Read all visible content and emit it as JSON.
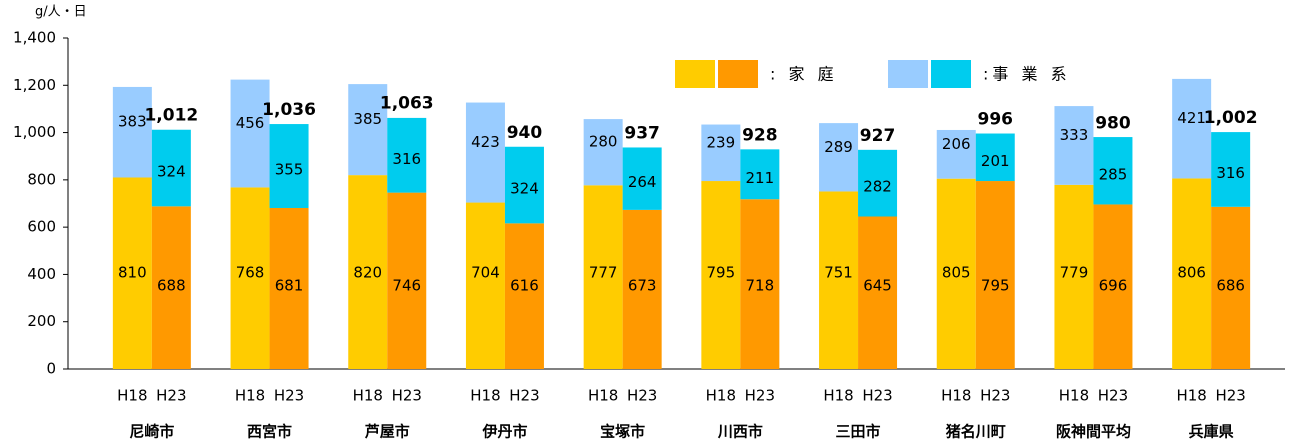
{
  "chart_data": {
    "type": "stacked_grouped_bar",
    "y_axis_label": "g/人・日",
    "groups": [
      "尼崎市",
      "西宮市",
      "芦屋市",
      "伊丹市",
      "宝塚市",
      "川西市",
      "三田市",
      "猪名川町",
      "阪神間平均",
      "兵庫県"
    ],
    "subcategories": [
      "H18",
      "H23"
    ],
    "series": [
      {
        "name": ": 家 庭",
        "colors": [
          "#FFCC00",
          "#FF9900"
        ],
        "values": [
          [
            810,
            688
          ],
          [
            768,
            681
          ],
          [
            820,
            746
          ],
          [
            704,
            616
          ],
          [
            777,
            673
          ],
          [
            795,
            718
          ],
          [
            751,
            645
          ],
          [
            805,
            795
          ],
          [
            779,
            696
          ],
          [
            806,
            686
          ]
        ]
      },
      {
        "name": ":事 業 系",
        "colors": [
          "#99CCFF",
          "#00CCEE"
        ],
        "values": [
          [
            383,
            324
          ],
          [
            456,
            355
          ],
          [
            385,
            316
          ],
          [
            423,
            324
          ],
          [
            280,
            264
          ],
          [
            239,
            211
          ],
          [
            289,
            282
          ],
          [
            206,
            201
          ],
          [
            333,
            285
          ],
          [
            421,
            316
          ]
        ]
      }
    ],
    "totals": [
      1012,
      1036,
      1063,
      940,
      937,
      928,
      927,
      996,
      980,
      1002
    ],
    "total_labels": [
      "1,012",
      "1,036",
      "1,063",
      "940",
      "937",
      "928",
      "927",
      "996",
      "980",
      "1,002"
    ],
    "ylim": [
      0,
      1400
    ],
    "yticks": [
      0,
      200,
      400,
      600,
      800,
      1000,
      {
        "value": 1000,
        "label": "1,000"
      },
      {
        "value": 1200,
        "label": "1,200"
      },
      {
        "value": 1400,
        "label": "1,400"
      }
    ]
  }
}
